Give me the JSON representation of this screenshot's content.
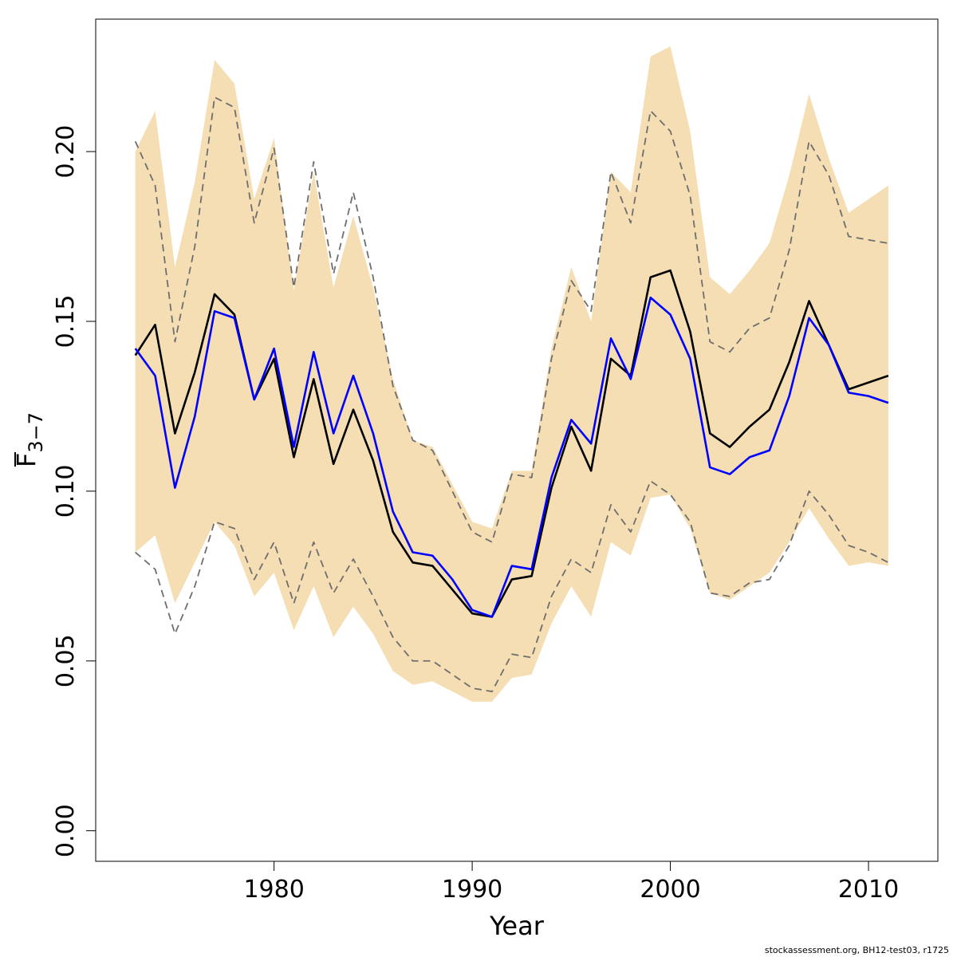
{
  "chart_data": {
    "type": "line",
    "xlabel": "Year",
    "ylabel": {
      "main": "F",
      "subscript": "3−7"
    },
    "xlim": [
      1971,
      2013.5
    ],
    "ylim": [
      -0.009,
      0.239
    ],
    "xticks": [
      1980,
      1990,
      2000,
      2010
    ],
    "yticks": [
      0.0,
      0.05,
      0.1,
      0.15,
      0.2
    ],
    "ytick_labels": [
      "0.00",
      "0.05",
      "0.10",
      "0.15",
      "0.20"
    ],
    "x": [
      1973,
      1974,
      1975,
      1976,
      1977,
      1978,
      1979,
      1980,
      1981,
      1982,
      1983,
      1984,
      1985,
      1986,
      1987,
      1988,
      1989,
      1990,
      1991,
      1992,
      1993,
      1994,
      1995,
      1996,
      1997,
      1998,
      1999,
      2000,
      2001,
      2002,
      2003,
      2004,
      2005,
      2006,
      2007,
      2008,
      2009,
      2010,
      2011
    ],
    "band": {
      "color": "#f5deb3",
      "lower": [
        0.082,
        0.087,
        0.067,
        0.079,
        0.091,
        0.084,
        0.069,
        0.076,
        0.059,
        0.072,
        0.057,
        0.066,
        0.058,
        0.047,
        0.043,
        0.044,
        0.041,
        0.038,
        0.038,
        0.045,
        0.046,
        0.061,
        0.072,
        0.063,
        0.085,
        0.081,
        0.098,
        0.099,
        0.089,
        0.07,
        0.068,
        0.072,
        0.076,
        0.085,
        0.095,
        0.086,
        0.078,
        0.079,
        0.078
      ],
      "upper": [
        0.2,
        0.212,
        0.166,
        0.191,
        0.227,
        0.22,
        0.186,
        0.204,
        0.159,
        0.194,
        0.16,
        0.181,
        0.16,
        0.133,
        0.115,
        0.113,
        0.102,
        0.091,
        0.089,
        0.106,
        0.106,
        0.142,
        0.166,
        0.15,
        0.194,
        0.188,
        0.228,
        0.231,
        0.206,
        0.163,
        0.158,
        0.165,
        0.173,
        0.193,
        0.217,
        0.198,
        0.182,
        0.186,
        0.19
      ]
    },
    "series": [
      {
        "color": "#000000",
        "style": "solid",
        "values": [
          0.14,
          0.149,
          0.117,
          0.135,
          0.158,
          0.152,
          0.127,
          0.139,
          0.11,
          0.133,
          0.108,
          0.124,
          0.109,
          0.088,
          0.079,
          0.078,
          0.071,
          0.064,
          0.063,
          0.074,
          0.075,
          0.101,
          0.119,
          0.106,
          0.139,
          0.134,
          0.163,
          0.165,
          0.147,
          0.117,
          0.113,
          0.119,
          0.124,
          0.138,
          0.156,
          0.143,
          0.13,
          0.132,
          0.134
        ]
      },
      {
        "color": "#0000ff",
        "style": "solid",
        "values": [
          0.142,
          0.134,
          0.101,
          0.122,
          0.153,
          0.151,
          0.127,
          0.142,
          0.113,
          0.141,
          0.117,
          0.134,
          0.117,
          0.094,
          0.082,
          0.081,
          0.074,
          0.065,
          0.063,
          0.078,
          0.077,
          0.104,
          0.121,
          0.114,
          0.145,
          0.133,
          0.157,
          0.152,
          0.139,
          0.107,
          0.105,
          0.11,
          0.112,
          0.128,
          0.151,
          0.143,
          0.129,
          0.128,
          0.126
        ]
      },
      {
        "color": "#6e6e6e",
        "style": "dashed",
        "values": [
          0.203,
          0.19,
          0.144,
          0.172,
          0.216,
          0.213,
          0.179,
          0.201,
          0.16,
          0.197,
          0.164,
          0.188,
          0.163,
          0.131,
          0.115,
          0.112,
          0.1,
          0.088,
          0.085,
          0.105,
          0.104,
          0.139,
          0.162,
          0.153,
          0.194,
          0.179,
          0.212,
          0.206,
          0.187,
          0.144,
          0.141,
          0.148,
          0.151,
          0.171,
          0.203,
          0.193,
          0.175,
          0.174,
          0.173
        ]
      },
      {
        "color": "#6e6e6e",
        "style": "dashed",
        "values": [
          0.082,
          0.077,
          0.058,
          0.072,
          0.091,
          0.089,
          0.074,
          0.085,
          0.067,
          0.085,
          0.07,
          0.08,
          0.069,
          0.057,
          0.05,
          0.05,
          0.046,
          0.042,
          0.041,
          0.052,
          0.051,
          0.069,
          0.08,
          0.076,
          0.096,
          0.088,
          0.103,
          0.099,
          0.091,
          0.07,
          0.069,
          0.073,
          0.074,
          0.084,
          0.1,
          0.093,
          0.084,
          0.082,
          0.079
        ]
      }
    ]
  },
  "footer": "stockassessment.org, BH12-test03, r1725"
}
